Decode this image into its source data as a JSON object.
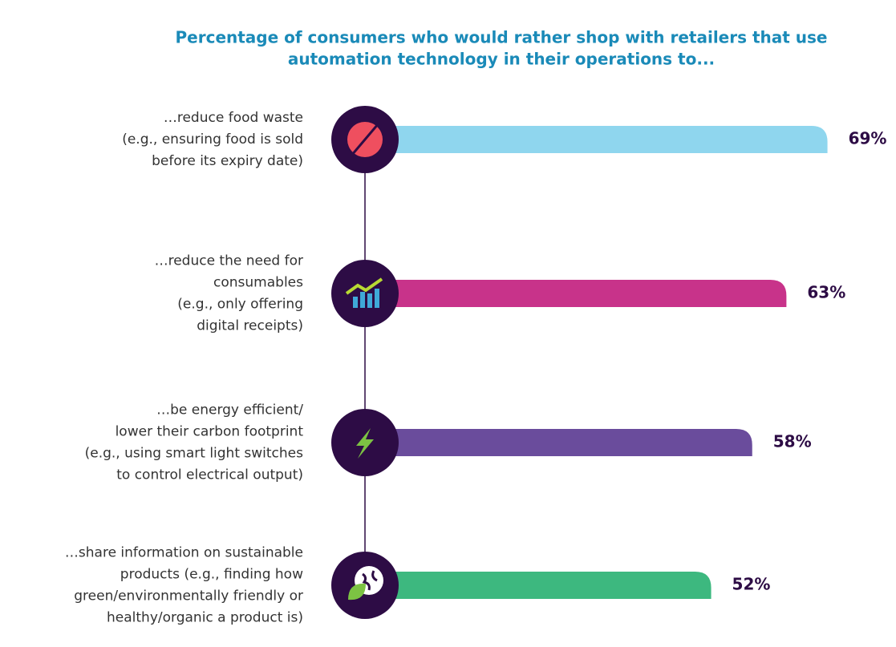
{
  "chart_data": {
    "type": "bar",
    "title": [
      "Percentage of consumers who would rather shop with retailers that use",
      "automation technology in their operations to..."
    ],
    "categories": [
      [
        "…reduce food waste",
        "(e.g., ensuring food is sold",
        "before its expiry date)"
      ],
      [
        "…reduce the need for",
        "consumables",
        "(e.g., only offering",
        "digital receipts)"
      ],
      [
        "…be energy efficient/",
        "lower their carbon footprint",
        "(e.g., using smart light switches",
        "to control electrical output)"
      ],
      [
        "…share information on sustainable",
        "products (e.g., finding how",
        "green/environmentally friendly or",
        "healthy/organic a product is)"
      ]
    ],
    "values": [
      69,
      63,
      58,
      52
    ],
    "value_labels": [
      "69%",
      "63%",
      "58%",
      "52%"
    ],
    "colors": [
      "#8fd6ee",
      "#c8338a",
      "#6a4c9c",
      "#3db87f"
    ]
  }
}
